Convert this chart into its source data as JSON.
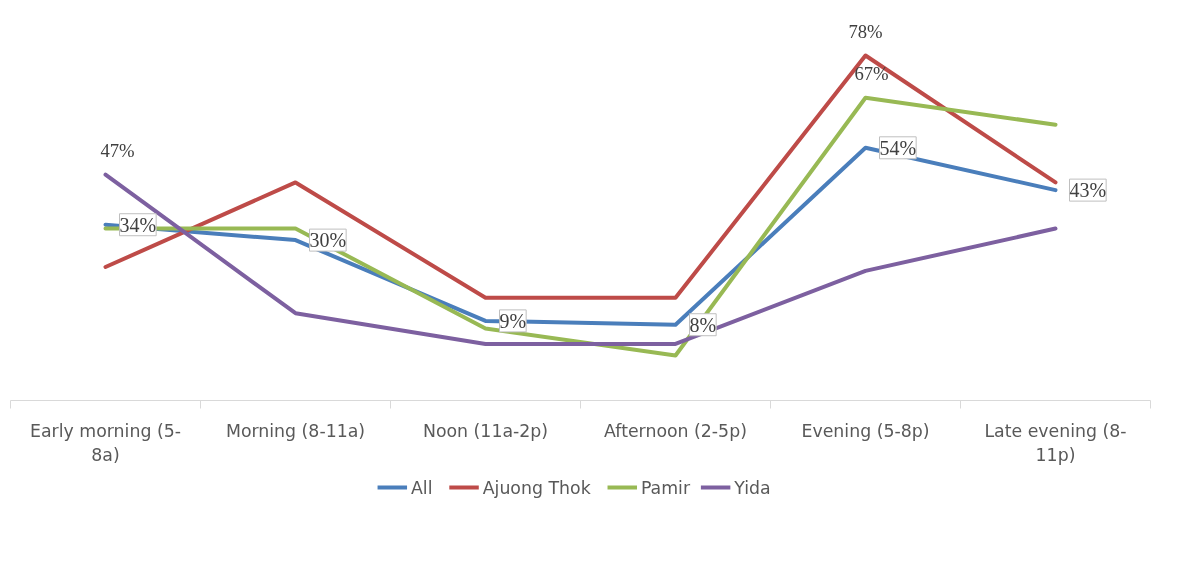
{
  "chart_data": {
    "type": "line",
    "categories": [
      "Early morning (5-8a)",
      "Morning (8-11a)",
      "Noon (11a-2p)",
      "Afternoon (2-5p)",
      "Evening (5-8p)",
      "Late evening (8-11p)"
    ],
    "series": [
      {
        "name": "All",
        "color": "#4a7ebb",
        "values": [
          34,
          30,
          9,
          8,
          54,
          43
        ],
        "value_labels": [
          "34%",
          "30%",
          "9%",
          "8%",
          "54%",
          "43%"
        ]
      },
      {
        "name": "Ajuong Thok",
        "color": "#be4b48",
        "values": [
          23,
          45,
          15,
          15,
          78,
          45
        ],
        "value_labels": [
          null,
          null,
          null,
          null,
          "78%",
          null
        ]
      },
      {
        "name": "Pamir",
        "color": "#98b954",
        "values": [
          33,
          33,
          7,
          0,
          67,
          60
        ],
        "value_labels": [
          null,
          null,
          null,
          null,
          "67%",
          null
        ]
      },
      {
        "name": "Yida",
        "color": "#7d60a0",
        "values": [
          47,
          11,
          3,
          3,
          22,
          33
        ],
        "value_labels": [
          "47%",
          null,
          null,
          null,
          null,
          null
        ]
      }
    ],
    "tick_labels": "x",
    "grid": false,
    "legend": "bottom",
    "marker": "none",
    "line_style": "solid"
  }
}
